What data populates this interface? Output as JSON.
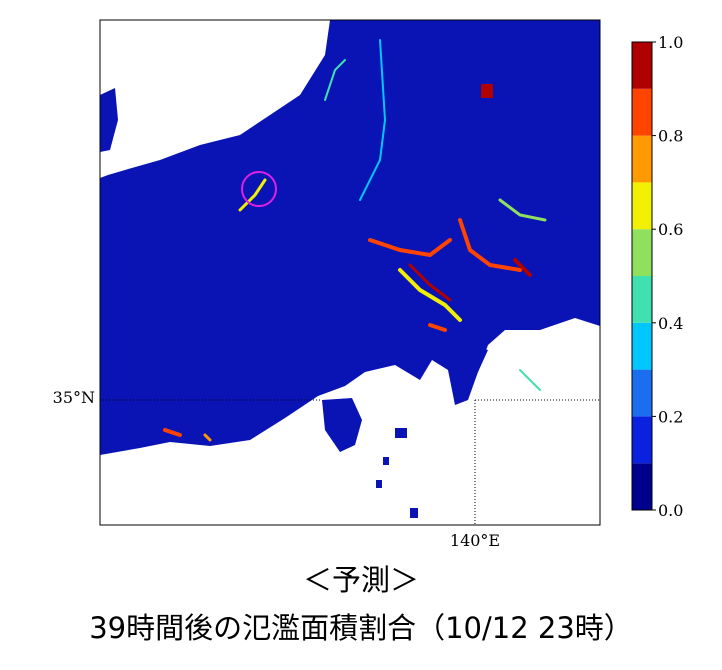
{
  "map": {
    "lat_label": "35°N",
    "lon_label": "140°E"
  },
  "colorbar": {
    "bounds": [
      0,
      0.1,
      0.2,
      0.3,
      0.4,
      0.5,
      0.6,
      0.7,
      0.8,
      0.9,
      1.0
    ],
    "colors": [
      "#00008f",
      "#0a22e0",
      "#1a6ef0",
      "#00c8ff",
      "#40e0b0",
      "#90e060",
      "#f0f000",
      "#ff9a00",
      "#ff4400",
      "#b00000"
    ],
    "ticks": [
      {
        "value": 0,
        "label": "0.0"
      },
      {
        "value": 0.2,
        "label": "0.2"
      },
      {
        "value": 0.4,
        "label": "0.4"
      },
      {
        "value": 0.6,
        "label": "0.6"
      },
      {
        "value": 0.8,
        "label": "0.8"
      },
      {
        "value": 1.0,
        "label": "1.0"
      }
    ]
  },
  "caption": {
    "line1": "＜予測＞",
    "line2": "39時間後の氾濫面積割合（10/12 23時）"
  }
}
